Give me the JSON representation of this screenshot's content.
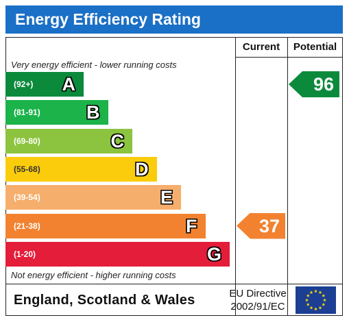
{
  "title": "Energy Efficiency Rating",
  "columns": {
    "current": "Current",
    "potential": "Potential"
  },
  "top_caption": "Very energy efficient - lower running costs",
  "bottom_caption": "Not energy efficient - higher running costs",
  "footer": {
    "country": "England, Scotland & Wales",
    "directive_line1": "EU Directive",
    "directive_line2": "2002/91/EC",
    "flag_icon": "eu-flag-icon"
  },
  "chart_data": {
    "type": "bar",
    "bands": [
      {
        "letter": "A",
        "range": "(92+)",
        "color": "#0c8a3c"
      },
      {
        "letter": "B",
        "range": "(81-91)",
        "color": "#1bb34a"
      },
      {
        "letter": "C",
        "range": "(69-80)",
        "color": "#8cc43f"
      },
      {
        "letter": "D",
        "range": "(55-68)",
        "color": "#fbcc0b"
      },
      {
        "letter": "E",
        "range": "(39-54)",
        "color": "#f6ae6c"
      },
      {
        "letter": "F",
        "range": "(21-38)",
        "color": "#f28230"
      },
      {
        "letter": "G",
        "range": "(1-20)",
        "color": "#e41d3b"
      }
    ],
    "current": {
      "value": "37",
      "band": "F",
      "color": "#f28230"
    },
    "potential": {
      "value": "96",
      "band": "A",
      "color": "#0c8a3c"
    }
  }
}
